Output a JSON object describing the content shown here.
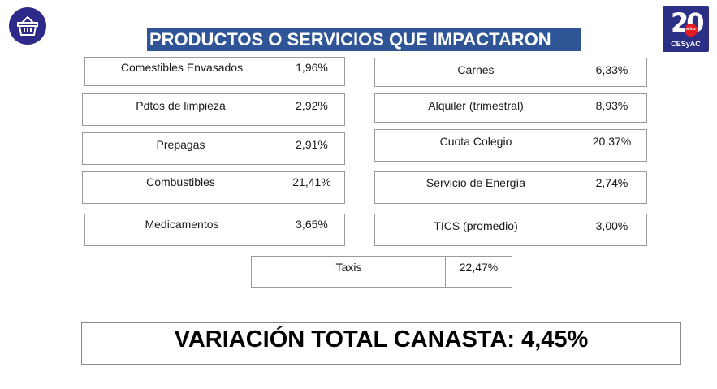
{
  "header": {
    "title": "PRODUCTOS O SERVICIOS QUE IMPACTARON",
    "brand_number": "20",
    "brand_badge_text": "años",
    "brand_name": "CESyAC",
    "basket_icon": "shopping-basket-icon"
  },
  "colors": {
    "title_background": "#2f5597",
    "logo_background": "#2f2a8a",
    "brand_red": "#e31e24"
  },
  "items": [
    {
      "label": "Comestibles Envasados",
      "value": "1,96%"
    },
    {
      "label": "Pdtos de limpieza",
      "value": "2,92%"
    },
    {
      "label": "Prepagas",
      "value": "2,91%"
    },
    {
      "label": "Combustibles",
      "value": "21,41%"
    },
    {
      "label": "Medicamentos",
      "value": "3,65%"
    },
    {
      "label": "Carnes",
      "value": "6,33%"
    },
    {
      "label": "Alquiler (trimestral)",
      "value": "8,93%"
    },
    {
      "label": "Cuota Colegio",
      "value": "20,37%"
    },
    {
      "label": "Servicio de Energía",
      "value": "2,74%"
    },
    {
      "label": "TICS (promedio)",
      "value": "3,00%"
    },
    {
      "label": "Taxis",
      "value": "22,47%"
    }
  ],
  "summary": {
    "text": "VARIACIÓN TOTAL CANASTA: 4,45%"
  }
}
